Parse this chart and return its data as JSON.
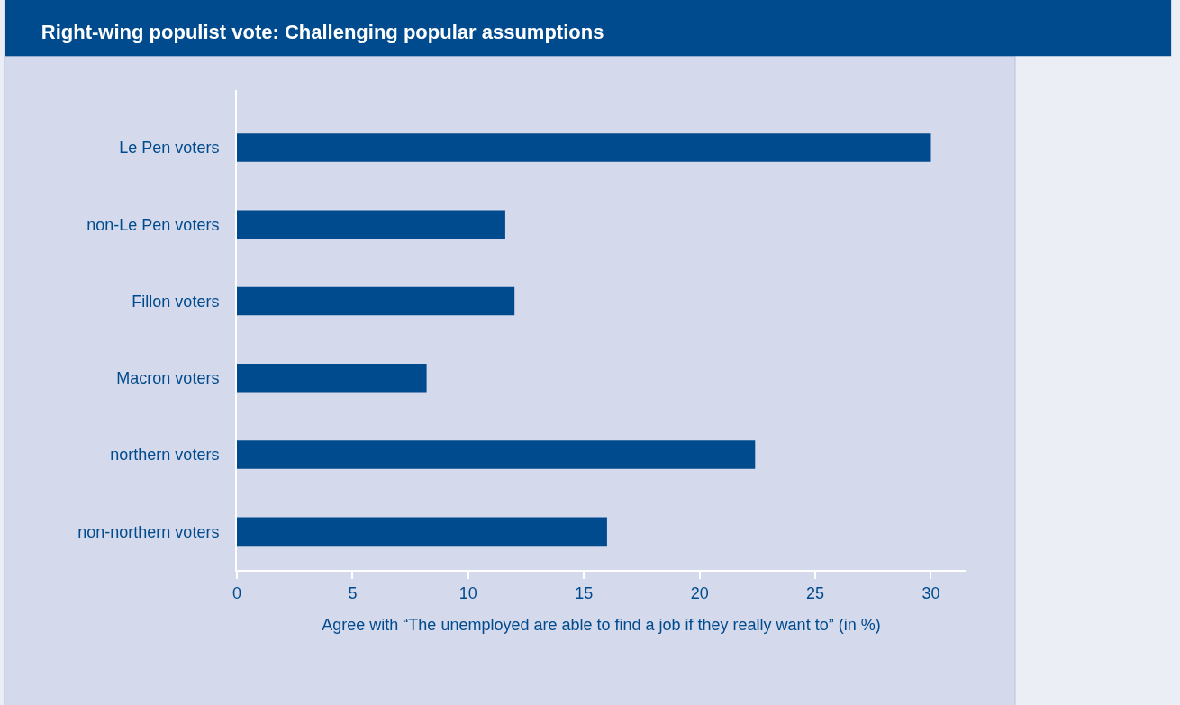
{
  "chart_data": {
    "type": "bar",
    "orientation": "horizontal",
    "title": "Right-wing populist vote: Challenging popular assumptions",
    "xlabel": "Agree with “The unemployed are able to find a job if they really want to” (in %)",
    "categories": [
      "Le Pen voters",
      "non-Le Pen voters",
      "Fillon voters",
      "Macron voters",
      "northern voters",
      "non-northern voters"
    ],
    "values": [
      30.0,
      11.6,
      12.0,
      8.2,
      22.4,
      16.0
    ],
    "color": "#004b8d",
    "xlim": [
      0,
      31.5
    ],
    "xticks": [
      0,
      5,
      10,
      15,
      20,
      25,
      30
    ],
    "grid": false
  }
}
